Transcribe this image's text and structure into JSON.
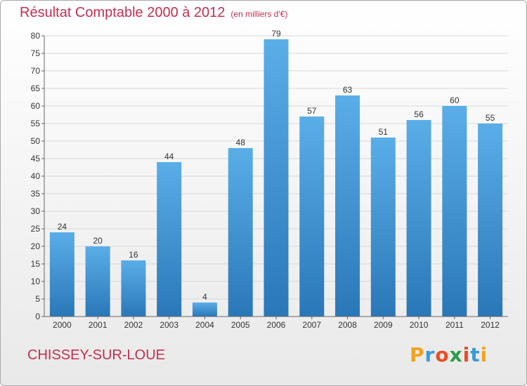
{
  "title": "Résultat Comptable 2000 à 2012",
  "subtitle": "(en milliers d'€)",
  "commune": "CHISSEY-SUR-LOUE",
  "logo": {
    "letters": [
      "P",
      "r",
      "o",
      "x",
      "i",
      "t",
      "i"
    ],
    "colors": [
      "#f0a31f",
      "#3a9ad9",
      "#e94e24",
      "#2a9d4b",
      "#e94e24",
      "#3a9ad9",
      "#f0a31f"
    ]
  },
  "chart_data": {
    "type": "bar",
    "categories": [
      "2000",
      "2001",
      "2002",
      "2003",
      "2004",
      "2005",
      "2006",
      "2007",
      "2008",
      "2009",
      "2010",
      "2011",
      "2012"
    ],
    "values": [
      24,
      20,
      16,
      44,
      4,
      48,
      79,
      57,
      63,
      51,
      56,
      60,
      55
    ],
    "ylim": [
      0,
      80
    ],
    "yticks": [
      0,
      5,
      10,
      15,
      20,
      25,
      30,
      35,
      40,
      45,
      50,
      55,
      60,
      65,
      70,
      75,
      80
    ],
    "grid": true,
    "colors": {
      "bar_top": "#5aaee8",
      "bar_bottom": "#2a77b8",
      "grid": "#d8d8d8",
      "axis": "#666666",
      "text": "#333333"
    }
  }
}
